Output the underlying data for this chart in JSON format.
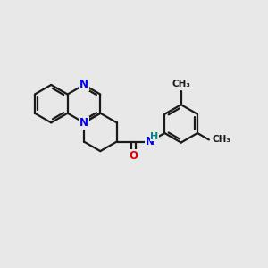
{
  "bg_color": "#e8e8e8",
  "bond_color": "#1a1a1a",
  "N_color": "#0000ee",
  "O_color": "#dd0000",
  "H_color": "#008888",
  "line_width": 1.6,
  "font_size_atom": 8.5,
  "font_size_h": 8.0,
  "font_size_methyl": 7.5,
  "xlim": [
    0,
    10
  ],
  "ylim": [
    0,
    10
  ]
}
